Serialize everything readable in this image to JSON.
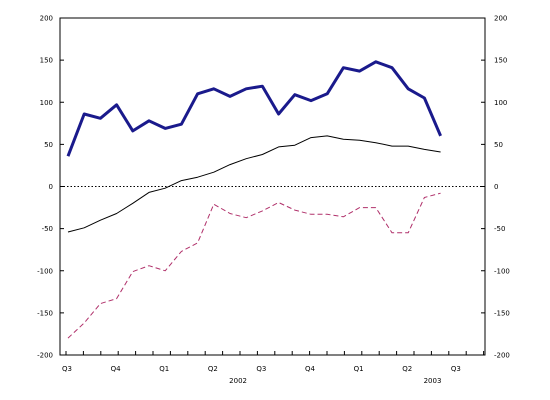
{
  "chart_data": {
    "type": "line",
    "title": "",
    "xlabel": "",
    "ylabel": "",
    "ylim": [
      -200,
      200
    ],
    "yticks": [
      200,
      150,
      100,
      50,
      0,
      -50,
      -100,
      -150,
      -200
    ],
    "x_quarter_labels": [
      {
        "label": "Q3",
        "at": 0
      },
      {
        "label": "Q4",
        "at": 3
      },
      {
        "label": "Q1",
        "at": 6
      },
      {
        "label": "Q2",
        "at": 9
      },
      {
        "label": "Q3",
        "at": 12
      },
      {
        "label": "Q4",
        "at": 15
      },
      {
        "label": "Q1",
        "at": 18
      },
      {
        "label": "Q2",
        "at": 21
      },
      {
        "label": "Q3",
        "at": 24
      }
    ],
    "x_year_labels": [
      {
        "label": "2002",
        "at": 10.5
      },
      {
        "label": "2003",
        "at": 22.5
      }
    ],
    "x_count": 24,
    "reference_line": 0,
    "series": [
      {
        "color": "#1a1a8c",
        "style": "thick",
        "values": [
          36,
          86,
          81,
          97,
          66,
          78,
          69,
          74,
          110,
          116,
          107,
          116,
          119,
          86,
          109,
          102,
          110,
          141,
          137,
          148,
          141,
          116,
          105,
          60
        ]
      },
      {
        "color": "#000000",
        "style": "thin",
        "values": [
          -54,
          -49,
          -40,
          -32,
          -20,
          -7,
          -2,
          7,
          11,
          17,
          26,
          33,
          38,
          47,
          49,
          58,
          60,
          56,
          55,
          52,
          48,
          48,
          44,
          41
        ]
      },
      {
        "color": "#b0306a",
        "style": "dashed",
        "values": [
          -180,
          -162,
          -139,
          -133,
          -101,
          -94,
          -100,
          -77,
          -67,
          -21,
          -32,
          -37,
          -29,
          -19,
          -28,
          -33,
          -33,
          -36,
          -25,
          -25,
          -55,
          -55,
          -13,
          -8
        ]
      }
    ]
  }
}
